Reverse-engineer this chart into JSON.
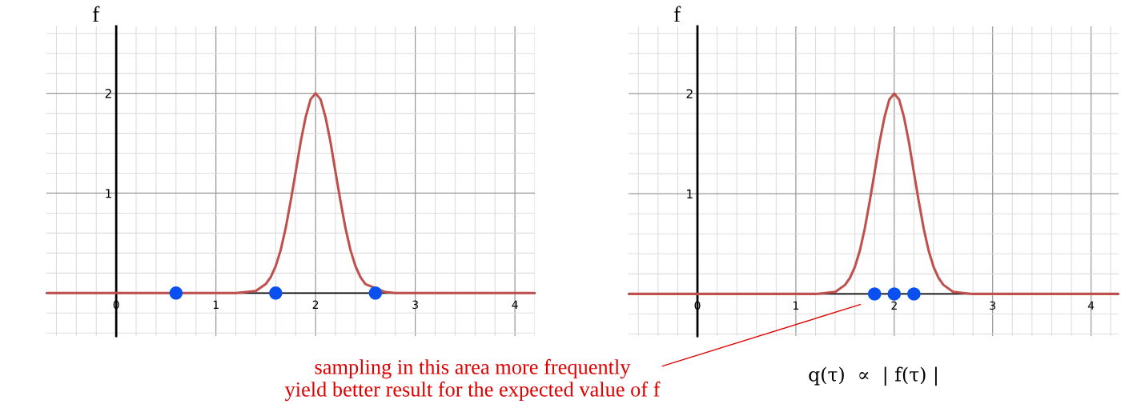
{
  "chart_data": [
    {
      "type": "line",
      "ylabel": "f",
      "xlim": [
        -0.7,
        4.2
      ],
      "ylim": [
        -0.43,
        2.67
      ],
      "xticks": [
        0,
        1,
        2,
        3,
        4
      ],
      "yticks": [
        1,
        2
      ],
      "grid": true,
      "series": [
        {
          "color": "#c0504d",
          "x": [
            -0.7,
            1.2,
            1.3,
            1.4,
            1.5,
            1.55,
            1.6,
            1.65,
            1.7,
            1.75,
            1.8,
            1.85,
            1.9,
            1.95,
            2.0,
            2.05,
            2.1,
            2.15,
            2.2,
            2.25,
            2.3,
            2.35,
            2.4,
            2.45,
            2.5,
            2.7,
            2.8,
            4.2
          ],
          "values": [
            0,
            0,
            0.01,
            0.02,
            0.09,
            0.16,
            0.27,
            0.43,
            0.65,
            0.92,
            1.21,
            1.51,
            1.76,
            1.94,
            2.0,
            1.94,
            1.76,
            1.51,
            1.21,
            0.92,
            0.65,
            0.43,
            0.27,
            0.16,
            0.09,
            0.01,
            0,
            0
          ]
        },
        {
          "type": "scatter",
          "marker": "circle",
          "color": "#0a50f0",
          "x": [
            0.6,
            1.6,
            2.6
          ],
          "values": [
            0,
            0,
            0
          ]
        }
      ]
    },
    {
      "type": "line",
      "ylabel": "f",
      "xlabel": "q(τ)  ∝  | f(τ) |",
      "xlim": [
        -0.7,
        4.28
      ],
      "ylim": [
        -0.42,
        2.67
      ],
      "xticks": [
        0,
        1,
        2,
        3,
        4
      ],
      "yticks": [
        1,
        2
      ],
      "grid": true,
      "annotations": [
        "sampling in this area more frequently\nyield better result for the expected value of f"
      ],
      "series": [
        {
          "color": "#c0504d",
          "x": [
            -0.7,
            1.2,
            1.3,
            1.4,
            1.5,
            1.55,
            1.6,
            1.65,
            1.7,
            1.75,
            1.8,
            1.85,
            1.9,
            1.95,
            2.0,
            2.05,
            2.1,
            2.15,
            2.2,
            2.25,
            2.3,
            2.35,
            2.4,
            2.45,
            2.5,
            2.6,
            2.7,
            2.8,
            4.28
          ],
          "values": [
            0,
            0,
            0.01,
            0.02,
            0.09,
            0.16,
            0.27,
            0.43,
            0.65,
            0.92,
            1.21,
            1.51,
            1.76,
            1.94,
            2.0,
            1.94,
            1.76,
            1.51,
            1.21,
            0.92,
            0.65,
            0.43,
            0.27,
            0.16,
            0.09,
            0.02,
            0.01,
            0,
            0
          ]
        },
        {
          "type": "scatter",
          "marker": "circle",
          "color": "#0a50f0",
          "x": [
            1.8,
            2.0,
            2.2
          ],
          "values": [
            0,
            0,
            0
          ]
        }
      ]
    }
  ]
}
